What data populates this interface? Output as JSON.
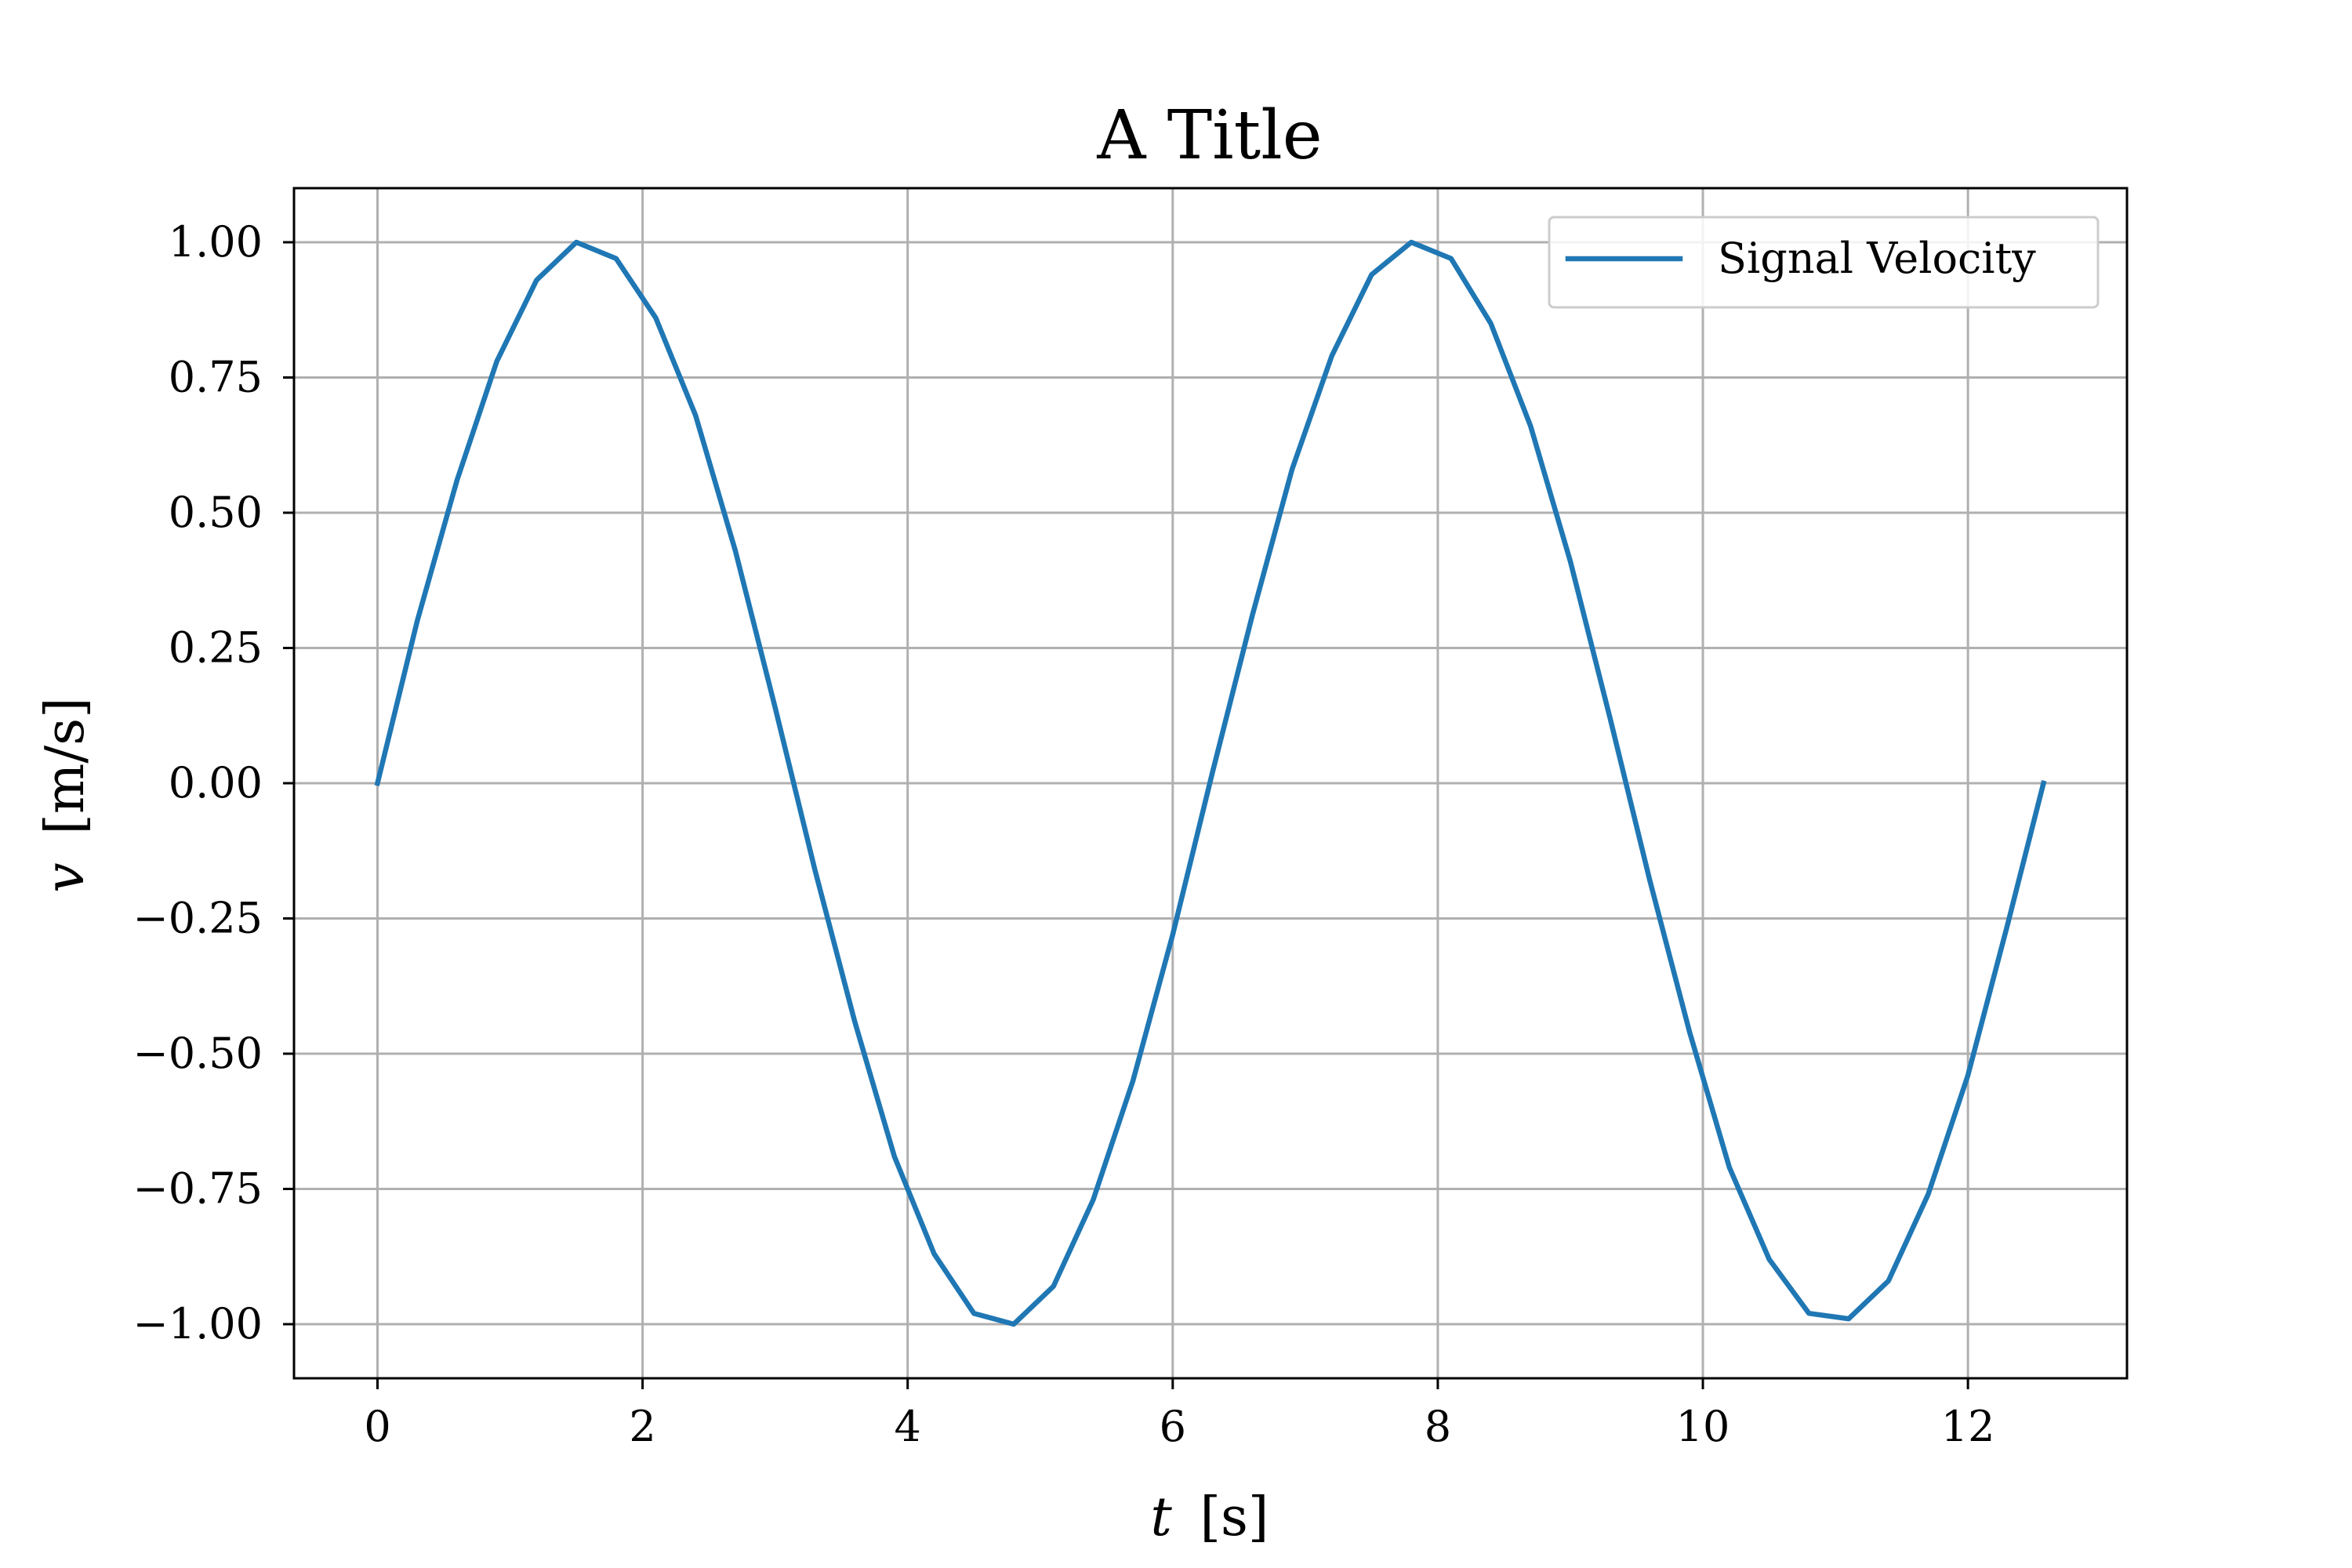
{
  "chart_data": {
    "type": "line",
    "title": "A Title",
    "xlabel": {
      "symbol": "t",
      "unit": "[s]"
    },
    "ylabel": {
      "symbol": "v",
      "unit": "[m/s]"
    },
    "xlim": [
      -0.63,
      13.2
    ],
    "ylim": [
      -1.1,
      1.1
    ],
    "x_ticks": [
      0,
      2,
      4,
      6,
      8,
      10,
      12
    ],
    "x_tick_labels": [
      "0",
      "2",
      "4",
      "6",
      "8",
      "10",
      "12"
    ],
    "y_ticks": [
      1.0,
      0.75,
      0.5,
      0.25,
      0.0,
      -0.25,
      -0.5,
      -0.75,
      -1.0
    ],
    "y_tick_labels": [
      "1.00",
      "0.75",
      "0.50",
      "0.25",
      "0.00",
      "−0.25",
      "−0.50",
      "−0.75",
      "−1.00"
    ],
    "grid": true,
    "legend_position": "top-right",
    "series": [
      {
        "name": "Signal Velocity",
        "color": "#1f77b4",
        "x": [
          0.0,
          0.3,
          0.6,
          0.9,
          1.2,
          1.5,
          1.8,
          2.1,
          2.4,
          2.7,
          3.0,
          3.3,
          3.6,
          3.9,
          4.2,
          4.5,
          4.8,
          5.1,
          5.4,
          5.7,
          6.0,
          6.3,
          6.6,
          6.9,
          7.2,
          7.5,
          7.8,
          8.1,
          8.4,
          8.7,
          9.0,
          9.3,
          9.6,
          9.9,
          10.2,
          10.5,
          10.8,
          11.1,
          11.4,
          11.7,
          12.0,
          12.3,
          12.57
        ],
        "y": [
          0.0,
          0.3,
          0.56,
          0.78,
          0.93,
          1.0,
          0.97,
          0.86,
          0.68,
          0.43,
          0.14,
          -0.16,
          -0.44,
          -0.69,
          -0.87,
          -0.98,
          -1.0,
          -0.93,
          -0.77,
          -0.55,
          -0.28,
          0.02,
          0.31,
          0.58,
          0.79,
          0.94,
          1.0,
          0.97,
          0.85,
          0.66,
          0.41,
          0.12,
          -0.18,
          -0.46,
          -0.71,
          -0.88,
          -0.98,
          -0.99,
          -0.92,
          -0.76,
          -0.54,
          -0.26,
          0.0
        ]
      }
    ]
  }
}
